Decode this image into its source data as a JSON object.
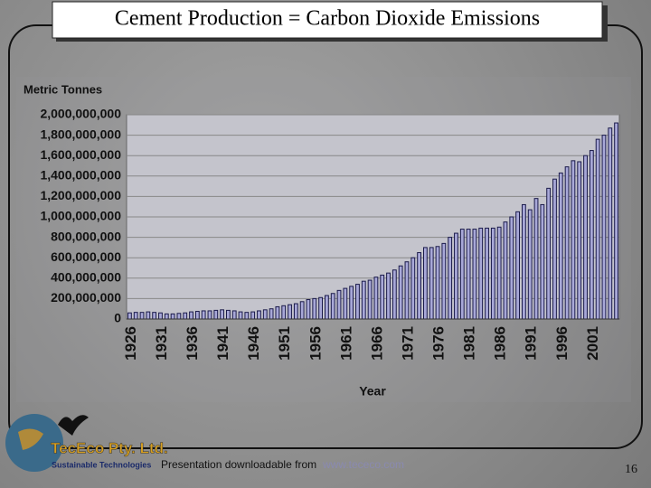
{
  "title": "Cement Production = Carbon Dioxide Emissions",
  "footer": {
    "text": "Presentation downloadable from",
    "link": "www.tececo.com"
  },
  "page_number": "16",
  "logo": {
    "name": "TecEco Pty. Ltd.",
    "tagline": "Sustainable Technologies"
  },
  "chart_data": {
    "type": "bar",
    "y_label": "Metric Tonnes",
    "x_label": "Year",
    "categories": [
      "1926",
      null,
      null,
      null,
      null,
      "1931",
      null,
      null,
      null,
      null,
      "1936",
      null,
      null,
      null,
      null,
      "1941",
      null,
      null,
      null,
      null,
      "1946",
      null,
      null,
      null,
      null,
      "1951",
      null,
      null,
      null,
      null,
      "1956",
      null,
      null,
      null,
      null,
      "1961",
      null,
      null,
      null,
      null,
      "1966",
      null,
      null,
      null,
      null,
      "1971",
      null,
      null,
      null,
      null,
      "1976",
      null,
      null,
      null,
      null,
      "1981",
      null,
      null,
      null,
      null,
      "1986",
      null,
      null,
      null,
      null,
      "1991",
      null,
      null,
      null,
      null,
      "1996",
      null,
      null,
      null,
      null,
      "2001",
      null,
      null,
      null,
      null
    ],
    "values": [
      60000000,
      65000000,
      65000000,
      70000000,
      65000000,
      60000000,
      50000000,
      50000000,
      55000000,
      60000000,
      70000000,
      75000000,
      80000000,
      80000000,
      85000000,
      90000000,
      85000000,
      80000000,
      70000000,
      65000000,
      70000000,
      80000000,
      90000000,
      100000000,
      120000000,
      130000000,
      140000000,
      150000000,
      170000000,
      190000000,
      200000000,
      210000000,
      230000000,
      250000000,
      280000000,
      300000000,
      320000000,
      340000000,
      370000000,
      380000000,
      410000000,
      430000000,
      450000000,
      480000000,
      520000000,
      560000000,
      600000000,
      650000000,
      700000000,
      700000000,
      710000000,
      740000000,
      800000000,
      840000000,
      880000000,
      880000000,
      880000000,
      890000000,
      890000000,
      890000000,
      900000000,
      950000000,
      1000000000,
      1050000000,
      1120000000,
      1070000000,
      1180000000,
      1120000000,
      1280000000,
      1370000000,
      1430000000,
      1490000000,
      1550000000,
      1540000000,
      1600000000,
      1650000000,
      1760000000,
      1800000000,
      1870000000,
      1920000000
    ],
    "color": "#a8a8d8",
    "ylim": [
      0,
      2000000000
    ],
    "yticks": [
      0,
      {
        "value": 200000000,
        "label": "200,000,000"
      },
      {
        "value": 400000000,
        "label": "400,000,000"
      },
      {
        "value": 600000000,
        "label": "600,000,000"
      },
      {
        "value": 800000000,
        "label": "800,000,000"
      },
      {
        "value": 1000000000,
        "label": "1,000,000,000"
      },
      {
        "value": 1200000000,
        "label": "1,200,000,000"
      },
      {
        "value": 1400000000,
        "label": "1,400,000,000"
      },
      {
        "value": 1600000000,
        "label": "1,600,000,000"
      },
      {
        "value": 1800000000,
        "label": "1,800,000,000"
      },
      {
        "value": 2000000000,
        "label": "2,000,000,000"
      }
    ],
    "grid": true
  }
}
